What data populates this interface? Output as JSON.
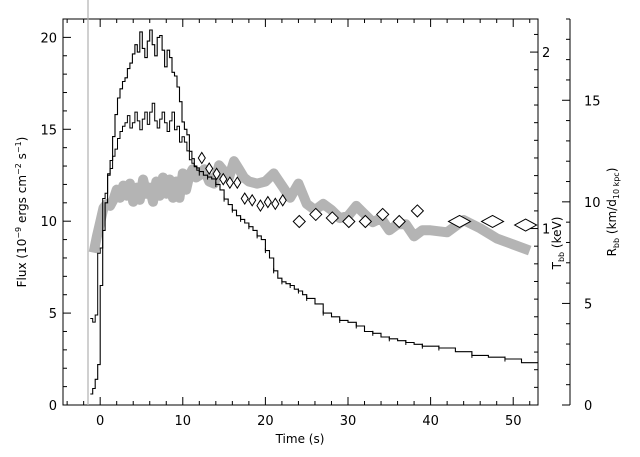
{
  "chart_data": {
    "type": "line",
    "x_axis": {
      "label": "Time (s)",
      "range": [
        -4.5,
        53
      ],
      "ticks": [
        0,
        10,
        20,
        30,
        40,
        50
      ]
    },
    "y_left": {
      "label_pre": "Flux (10",
      "label_sup1": "−9",
      "label_mid": " ergs cm",
      "label_sup2": "−2",
      "label_mid2": " s",
      "label_sup3": "−1",
      "label_post": ")",
      "range": [
        0,
        21
      ],
      "ticks": [
        0,
        5,
        10,
        15,
        20
      ]
    },
    "y_right1": {
      "label_main": "T",
      "label_sub": "bb",
      "label_tail": " (keV)",
      "ticks": [
        1,
        2
      ],
      "flux_per_keV": 9.6
    },
    "y_right2": {
      "label_main": "R",
      "label_sub": "bb",
      "label_mid": " (km/d",
      "label_sub2": "10 kpc",
      "label_tail": ")",
      "range": [
        0,
        19
      ],
      "ticks": [
        0,
        5,
        10,
        15
      ]
    },
    "series": [
      {
        "kind": "flux",
        "color": "#000000",
        "points": [
          [
            -1.2,
            0.6
          ],
          [
            -0.9,
            0.9
          ],
          [
            -0.6,
            1.4
          ],
          [
            -0.3,
            2.2
          ],
          [
            0,
            6.5
          ],
          [
            0.3,
            9.5
          ],
          [
            0.6,
            11.0
          ],
          [
            0.9,
            12.5
          ],
          [
            1.2,
            13.3
          ],
          [
            1.5,
            14.6
          ],
          [
            1.8,
            15.8
          ],
          [
            2.1,
            16.7
          ],
          [
            2.4,
            17.2
          ],
          [
            2.7,
            17.6
          ],
          [
            3.0,
            17.8
          ],
          [
            3.3,
            18.3
          ],
          [
            3.6,
            18.6
          ],
          [
            3.9,
            19.1
          ],
          [
            4.2,
            19.6
          ],
          [
            4.5,
            19.2
          ],
          [
            4.8,
            20.3
          ],
          [
            5.1,
            19.4
          ],
          [
            5.4,
            18.9
          ],
          [
            5.7,
            19.8
          ],
          [
            6.0,
            20.4
          ],
          [
            6.3,
            19.6
          ],
          [
            6.6,
            19.0
          ],
          [
            6.9,
            20.0
          ],
          [
            7.2,
            20.1
          ],
          [
            7.5,
            19.3
          ],
          [
            7.8,
            18.4
          ],
          [
            8.1,
            19.3
          ],
          [
            8.4,
            18.9
          ],
          [
            8.7,
            18.1
          ],
          [
            9.0,
            17.9
          ],
          [
            9.3,
            17.3
          ],
          [
            9.6,
            16.5
          ],
          [
            9.9,
            15.4
          ],
          [
            10.2,
            15.0
          ],
          [
            10.5,
            14.7
          ],
          [
            10.8,
            13.8
          ],
          [
            11.1,
            13.4
          ],
          [
            11.4,
            13.0
          ],
          [
            11.7,
            12.9
          ],
          [
            12.0,
            12.7
          ],
          [
            12.5,
            12.5
          ],
          [
            13.0,
            12.4
          ],
          [
            13.5,
            12.3
          ],
          [
            14.0,
            12.0
          ],
          [
            14.5,
            11.7
          ],
          [
            15.0,
            11.2
          ],
          [
            15.5,
            10.9
          ],
          [
            16.0,
            10.6
          ],
          [
            16.5,
            10.3
          ],
          [
            17.0,
            10.1
          ],
          [
            17.5,
            9.9
          ],
          [
            18.0,
            9.7
          ],
          [
            18.5,
            9.5
          ],
          [
            19.0,
            9.2
          ],
          [
            19.5,
            9.0
          ],
          [
            20.0,
            8.4
          ],
          [
            20.5,
            8.0
          ],
          [
            21.0,
            7.3
          ],
          [
            21.5,
            6.9
          ],
          [
            22.0,
            6.7
          ],
          [
            22.5,
            6.6
          ],
          [
            23.0,
            6.5
          ],
          [
            23.5,
            6.3
          ],
          [
            24.0,
            6.2
          ],
          [
            24.5,
            6.0
          ],
          [
            25.0,
            5.8
          ],
          [
            26.0,
            5.5
          ],
          [
            27.0,
            5.0
          ],
          [
            28.0,
            4.8
          ],
          [
            29.0,
            4.6
          ],
          [
            30.0,
            4.5
          ],
          [
            31.0,
            4.3
          ],
          [
            32.0,
            4.0
          ],
          [
            33.0,
            3.9
          ],
          [
            34.0,
            3.7
          ],
          [
            35.0,
            3.6
          ],
          [
            36.0,
            3.5
          ],
          [
            37.0,
            3.4
          ],
          [
            38.0,
            3.3
          ],
          [
            39.0,
            3.2
          ],
          [
            40.0,
            3.2
          ],
          [
            41.0,
            3.1
          ],
          [
            43.0,
            2.9
          ],
          [
            45.0,
            2.7
          ],
          [
            47.0,
            2.6
          ],
          [
            49.0,
            2.5
          ],
          [
            51.0,
            2.3
          ],
          [
            53.0,
            2.3
          ]
        ]
      },
      {
        "kind": "temperature",
        "color": "#000000",
        "points": [
          [
            -1.2,
            0.49
          ],
          [
            -0.9,
            0.47
          ],
          [
            -0.6,
            0.51
          ],
          [
            -0.3,
            0.86
          ],
          [
            0,
            0.89
          ],
          [
            0.3,
            1.17
          ],
          [
            0.6,
            1.2
          ],
          [
            0.9,
            1.31
          ],
          [
            1.2,
            1.34
          ],
          [
            1.5,
            1.41
          ],
          [
            1.8,
            1.45
          ],
          [
            2.1,
            1.51
          ],
          [
            2.4,
            1.55
          ],
          [
            2.7,
            1.58
          ],
          [
            3.0,
            1.6
          ],
          [
            3.3,
            1.64
          ],
          [
            3.6,
            1.57
          ],
          [
            3.9,
            1.6
          ],
          [
            4.2,
            1.66
          ],
          [
            4.5,
            1.61
          ],
          [
            4.8,
            1.56
          ],
          [
            5.1,
            1.62
          ],
          [
            5.4,
            1.66
          ],
          [
            5.7,
            1.59
          ],
          [
            6.0,
            1.66
          ],
          [
            6.3,
            1.71
          ],
          [
            6.6,
            1.61
          ],
          [
            6.9,
            1.57
          ],
          [
            7.2,
            1.62
          ],
          [
            7.5,
            1.66
          ],
          [
            7.8,
            1.6
          ],
          [
            8.1,
            1.55
          ],
          [
            8.4,
            1.61
          ],
          [
            8.7,
            1.66
          ],
          [
            9.0,
            1.56
          ],
          [
            9.3,
            1.58
          ],
          [
            9.6,
            1.49
          ],
          [
            9.9,
            1.52
          ],
          [
            10.2,
            1.49
          ],
          [
            10.5,
            1.44
          ],
          [
            10.8,
            1.39
          ],
          [
            11.1,
            1.37
          ],
          [
            11.4,
            1.35
          ],
          [
            11.7,
            1.33
          ],
          [
            12.0,
            1.3
          ]
        ]
      },
      {
        "kind": "temperature_diamonds",
        "color": "#000000",
        "points": [
          [
            12.3,
            1.4
          ],
          [
            13.2,
            1.34
          ],
          [
            14.1,
            1.31
          ],
          [
            14.9,
            1.28
          ],
          [
            15.7,
            1.26
          ],
          [
            16.6,
            1.26
          ],
          [
            17.5,
            1.17
          ],
          [
            18.4,
            1.16
          ],
          [
            19.4,
            1.13
          ],
          [
            20.3,
            1.15
          ],
          [
            21.2,
            1.14
          ],
          [
            22.1,
            1.16
          ],
          [
            24.1,
            1.04
          ],
          [
            26.1,
            1.08
          ],
          [
            28.1,
            1.06
          ],
          [
            30.1,
            1.04
          ],
          [
            32.1,
            1.04
          ],
          [
            34.2,
            1.08
          ],
          [
            36.2,
            1.04
          ],
          [
            38.4,
            1.1
          ],
          [
            43.5,
            1.04
          ],
          [
            47.5,
            1.04
          ],
          [
            51.5,
            1.02
          ]
        ]
      },
      {
        "kind": "radius_band",
        "color": "#b4b4b4",
        "points": [
          [
            -0.8,
            7.5
          ],
          [
            -0.4,
            8.3
          ],
          [
            0,
            9.0
          ],
          [
            0.4,
            9.7
          ],
          [
            0.8,
            9.9
          ],
          [
            1.2,
            9.8
          ],
          [
            1.6,
            10.1
          ],
          [
            2.0,
            10.6
          ],
          [
            2.4,
            10.2
          ],
          [
            2.8,
            10.8
          ],
          [
            3.2,
            10.3
          ],
          [
            3.6,
            10.9
          ],
          [
            4.0,
            10.0
          ],
          [
            4.4,
            10.7
          ],
          [
            4.8,
            10.1
          ],
          [
            5.2,
            11.1
          ],
          [
            5.6,
            10.4
          ],
          [
            6.0,
            10.7
          ],
          [
            6.4,
            10.0
          ],
          [
            6.8,
            11.0
          ],
          [
            7.2,
            10.3
          ],
          [
            7.6,
            11.2
          ],
          [
            8.0,
            10.4
          ],
          [
            8.4,
            11.1
          ],
          [
            8.8,
            10.2
          ],
          [
            9.2,
            11.0
          ],
          [
            9.6,
            10.2
          ],
          [
            10.0,
            11.4
          ],
          [
            10.4,
            10.6
          ],
          [
            10.8,
            11.3
          ],
          [
            11.2,
            11.6
          ],
          [
            11.6,
            11.2
          ],
          [
            12.0,
            11.3
          ],
          [
            12.6,
            11.6
          ],
          [
            13.2,
            11.0
          ],
          [
            13.8,
            10.9
          ],
          [
            14.4,
            11.8
          ],
          [
            15.0,
            11.5
          ],
          [
            15.6,
            11.2
          ],
          [
            16.2,
            12.0
          ],
          [
            16.8,
            11.6
          ],
          [
            17.4,
            11.2
          ],
          [
            18.0,
            11.0
          ],
          [
            19.0,
            10.9
          ],
          [
            20.0,
            11.0
          ],
          [
            21.0,
            11.4
          ],
          [
            22.0,
            10.8
          ],
          [
            23.0,
            10.2
          ],
          [
            24.0,
            10.9
          ],
          [
            25.0,
            9.9
          ],
          [
            26.0,
            9.6
          ],
          [
            27.0,
            9.9
          ],
          [
            28.0,
            9.6
          ],
          [
            29.0,
            9.2
          ],
          [
            30.0,
            9.3
          ],
          [
            31.0,
            9.8
          ],
          [
            32.0,
            9.4
          ],
          [
            33.0,
            9.0
          ],
          [
            34.0,
            9.2
          ],
          [
            35.0,
            8.6
          ],
          [
            36.0,
            8.9
          ],
          [
            37.0,
            8.9
          ],
          [
            38.0,
            8.3
          ],
          [
            39.0,
            8.6
          ],
          [
            40.0,
            8.6
          ],
          [
            42.0,
            8.5
          ],
          [
            44.0,
            9.1
          ],
          [
            46.0,
            8.7
          ],
          [
            48.0,
            8.2
          ],
          [
            50.0,
            7.9
          ],
          [
            52.0,
            7.6
          ]
        ]
      }
    ]
  }
}
